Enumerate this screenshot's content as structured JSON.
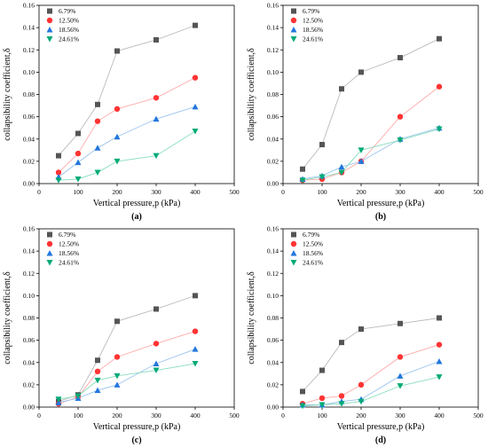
{
  "chart_data": [
    {
      "panel_label": "(a)",
      "type": "line",
      "xlabel": "Vertical pressure,p (kPa)",
      "ylabel": "collapsibility coefficient,δ",
      "xlim": [
        0,
        500
      ],
      "ylim": [
        0,
        0.16
      ],
      "xticks": [
        "0",
        "100",
        "200",
        "300",
        "400",
        "500"
      ],
      "yticks": [
        "0.00",
        "0.02",
        "0.04",
        "0.06",
        "0.08",
        "0.10",
        "0.12",
        "0.14",
        "0.16"
      ],
      "legend_placement": "top-left",
      "x": [
        50,
        100,
        150,
        200,
        300,
        400
      ],
      "series": [
        {
          "name": "6.79%",
          "marker": "square",
          "color": "#555555",
          "line_color": "#bbbbbb",
          "values": [
            0.025,
            0.045,
            0.071,
            0.119,
            0.129,
            0.142
          ]
        },
        {
          "name": "12.50%",
          "marker": "circle",
          "color": "#ff3333",
          "line_color": "#ffaaaa",
          "values": [
            0.01,
            0.027,
            0.056,
            0.067,
            0.077,
            0.095
          ]
        },
        {
          "name": "18.56%",
          "marker": "triangle",
          "color": "#2277dd",
          "line_color": "#99c4ee",
          "values": [
            0.006,
            0.019,
            0.032,
            0.042,
            0.058,
            0.069
          ]
        },
        {
          "name": "24.61%",
          "marker": "triangle-down",
          "color": "#00aa77",
          "line_color": "#88ddbb",
          "values": [
            0.003,
            0.004,
            0.01,
            0.02,
            0.025,
            0.047
          ]
        }
      ]
    },
    {
      "panel_label": "(b)",
      "type": "line",
      "xlabel": "Vertical pressure,p (kPa)",
      "ylabel": "collapsibility coefficient,δ",
      "xlim": [
        0,
        500
      ],
      "ylim": [
        0,
        0.16
      ],
      "xticks": [
        "0",
        "100",
        "200",
        "300",
        "400",
        "500"
      ],
      "yticks": [
        "0.00",
        "0.02",
        "0.04",
        "0.06",
        "0.08",
        "0.10",
        "0.12",
        "0.14",
        "0.16"
      ],
      "legend_placement": "top-left",
      "x": [
        50,
        100,
        150,
        200,
        300,
        400
      ],
      "series": [
        {
          "name": "6.79%",
          "marker": "square",
          "color": "#555555",
          "line_color": "#bbbbbb",
          "values": [
            0.013,
            0.035,
            0.085,
            0.1,
            0.113,
            0.13
          ]
        },
        {
          "name": "12.50%",
          "marker": "circle",
          "color": "#ff3333",
          "line_color": "#ffaaaa",
          "values": [
            0.003,
            0.004,
            0.01,
            0.02,
            0.06,
            0.087
          ]
        },
        {
          "name": "18.56%",
          "marker": "triangle",
          "color": "#2277dd",
          "line_color": "#99c4ee",
          "values": [
            0.004,
            0.007,
            0.015,
            0.02,
            0.04,
            0.05
          ]
        },
        {
          "name": "24.61%",
          "marker": "triangle-down",
          "color": "#00aa77",
          "line_color": "#88ddbb",
          "values": [
            0.003,
            0.006,
            0.01,
            0.03,
            0.039,
            0.049
          ]
        }
      ]
    },
    {
      "panel_label": "(c)",
      "type": "line",
      "xlabel": "Vertical pressure,p (kPa)",
      "ylabel": "collapsibility coefficient,δ",
      "xlim": [
        0,
        500
      ],
      "ylim": [
        0,
        0.16
      ],
      "xticks": [
        "0",
        "100",
        "200",
        "300",
        "400",
        "500"
      ],
      "yticks": [
        "0.00",
        "0.02",
        "0.04",
        "0.06",
        "0.08",
        "0.10",
        "0.12",
        "0.14",
        "0.16"
      ],
      "legend_placement": "top-left",
      "x": [
        50,
        100,
        150,
        200,
        300,
        400
      ],
      "series": [
        {
          "name": "6.79%",
          "marker": "square",
          "color": "#555555",
          "line_color": "#bbbbbb",
          "values": [
            0.005,
            0.011,
            0.042,
            0.077,
            0.088,
            0.1
          ]
        },
        {
          "name": "12.50%",
          "marker": "circle",
          "color": "#ff3333",
          "line_color": "#ffaaaa",
          "values": [
            0.003,
            0.009,
            0.032,
            0.045,
            0.057,
            0.068
          ]
        },
        {
          "name": "18.56%",
          "marker": "triangle",
          "color": "#2277dd",
          "line_color": "#99c4ee",
          "values": [
            0.004,
            0.008,
            0.015,
            0.02,
            0.039,
            0.052
          ]
        },
        {
          "name": "24.61%",
          "marker": "triangle-down",
          "color": "#00aa77",
          "line_color": "#88ddbb",
          "values": [
            0.007,
            0.01,
            0.024,
            0.028,
            0.033,
            0.039
          ]
        }
      ]
    },
    {
      "panel_label": "(d)",
      "type": "line",
      "xlabel": "Vertical pressure,p (kPa)",
      "ylabel": "collapsibility coefficient,δ",
      "xlim": [
        0,
        500
      ],
      "ylim": [
        0,
        0.16
      ],
      "xticks": [
        "0",
        "100",
        "200",
        "300",
        "400",
        "500"
      ],
      "yticks": [
        "0.00",
        "0.02",
        "0.04",
        "0.06",
        "0.08",
        "0.10",
        "0.12",
        "0.14",
        "0.16"
      ],
      "legend_placement": "top-left",
      "x": [
        50,
        100,
        150,
        200,
        300,
        400
      ],
      "series": [
        {
          "name": "6.79%",
          "marker": "square",
          "color": "#555555",
          "line_color": "#bbbbbb",
          "values": [
            0.014,
            0.033,
            0.058,
            0.07,
            0.075,
            0.08
          ]
        },
        {
          "name": "12.50%",
          "marker": "circle",
          "color": "#ff3333",
          "line_color": "#ffaaaa",
          "values": [
            0.003,
            0.008,
            0.01,
            0.02,
            0.045,
            0.056
          ]
        },
        {
          "name": "18.56%",
          "marker": "triangle",
          "color": "#2277dd",
          "line_color": "#99c4ee",
          "values": [
            0.002,
            0.002,
            0.005,
            0.007,
            0.028,
            0.041
          ]
        },
        {
          "name": "24.61%",
          "marker": "triangle-down",
          "color": "#00aa77",
          "line_color": "#88ddbb",
          "values": [
            0.001,
            0.002,
            0.003,
            0.005,
            0.019,
            0.027
          ]
        }
      ]
    }
  ]
}
